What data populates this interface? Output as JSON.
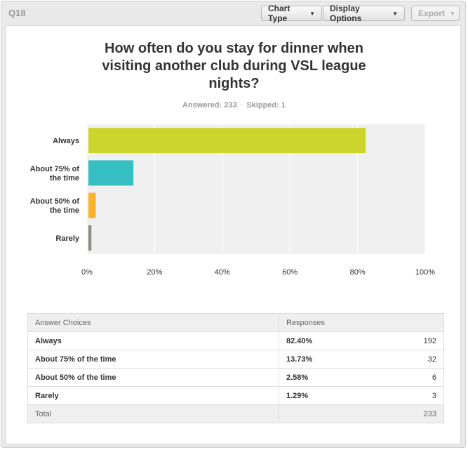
{
  "header": {
    "question_label": "Q18",
    "chart_type_label": "Chart Type",
    "display_options_label": "Display Options",
    "export_label": "Export"
  },
  "colors": {
    "bars": [
      "#cdd42b",
      "#35bfc2",
      "#fdb12b",
      "#8c8c83"
    ],
    "plot_bg": "#f0f0f0"
  },
  "chart_data": {
    "type": "bar",
    "orientation": "horizontal",
    "title": "How often do you stay for dinner when visiting another club during VSL league nights?",
    "categories": [
      "Always",
      "About 75% of the time",
      "About 50% of the time",
      "Rarely"
    ],
    "category_lines": [
      [
        "Always"
      ],
      [
        "About 75% of",
        "the time"
      ],
      [
        "About 50% of",
        "the time"
      ],
      [
        "Rarely"
      ]
    ],
    "values": [
      82.4,
      13.73,
      2.58,
      1.29
    ],
    "xlim": [
      0,
      100
    ],
    "xticks": [
      "0%",
      "20%",
      "40%",
      "60%",
      "80%",
      "100%"
    ],
    "grid": true,
    "legend": "none"
  },
  "summary": {
    "answered": "Answered: 233",
    "skipped": "Skipped: 1"
  },
  "table": {
    "headers": [
      "Answer Choices",
      "Responses"
    ],
    "rows": [
      {
        "choice": "Always",
        "percent": "82.40%",
        "count": "192"
      },
      {
        "choice": "About 75% of the time",
        "percent": "13.73%",
        "count": "32"
      },
      {
        "choice": "About 50% of the time",
        "percent": "2.58%",
        "count": "6"
      },
      {
        "choice": "Rarely",
        "percent": "1.29%",
        "count": "3"
      }
    ],
    "total_label": "Total",
    "total_count": "233"
  }
}
